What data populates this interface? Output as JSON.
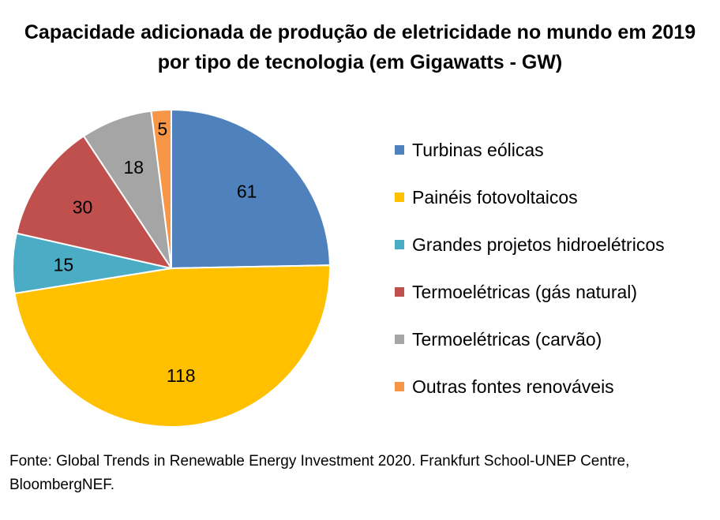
{
  "chart_data": {
    "type": "pie",
    "title": "Capacidade adicionada de produção de eletricidade no mundo em 2019",
    "subtitle": "por tipo de tecnologia (em Gigawatts - GW)",
    "categories": [
      "Turbinas eólicas",
      "Painéis fotovoltaicos",
      "Grandes projetos hidroelétricos",
      "Termoelétricas (gás natural)",
      "Termoelétricas (carvão)",
      "Outras fontes renováveis"
    ],
    "values": [
      61,
      118,
      15,
      30,
      18,
      5
    ],
    "colors": [
      "#4F81BD",
      "#FFC000",
      "#4BACC6",
      "#C0504D",
      "#A5A5A5",
      "#F79646"
    ],
    "legend_position": "right",
    "source": "Fonte: Global Trends in Renewable Energy Investment 2020. Frankfurt School-UNEP Centre, BloombergNEF."
  }
}
